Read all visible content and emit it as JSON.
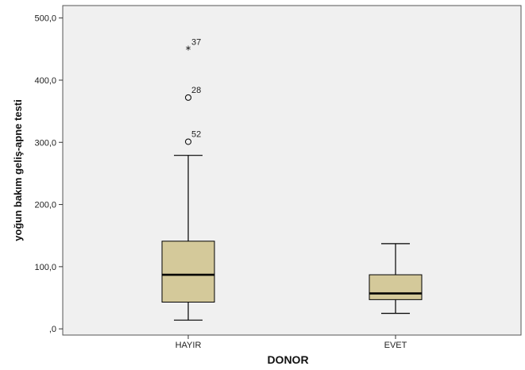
{
  "chart_data": {
    "type": "boxplot",
    "xlabel": "DONOR",
    "ylabel": "yoğun bakım geliş-apne testi",
    "ylim": [
      -10,
      520
    ],
    "yticks": [
      0,
      100,
      200,
      300,
      400,
      500
    ],
    "ytick_labels": [
      ",0",
      "100,0",
      "200,0",
      "300,0",
      "400,0",
      "500,0"
    ],
    "categories": [
      "HAYIR",
      "EVET"
    ],
    "boxes": [
      {
        "category": "HAYIR",
        "whisker_low": 14,
        "q1": 43,
        "median": 87,
        "q3": 141,
        "whisker_high": 279,
        "outliers": [
          {
            "id": "52",
            "value": 301,
            "marker": "circle"
          },
          {
            "id": "28",
            "value": 372,
            "marker": "circle"
          },
          {
            "id": "37",
            "value": 449,
            "marker": "star"
          }
        ]
      },
      {
        "category": "EVET",
        "whisker_low": 25,
        "q1": 47,
        "median": 57,
        "q3": 87,
        "whisker_high": 137,
        "outliers": []
      }
    ],
    "colors": {
      "plot_background": "#f0f0f0",
      "box_fill": "#d4c99a",
      "line": "#000000"
    }
  }
}
